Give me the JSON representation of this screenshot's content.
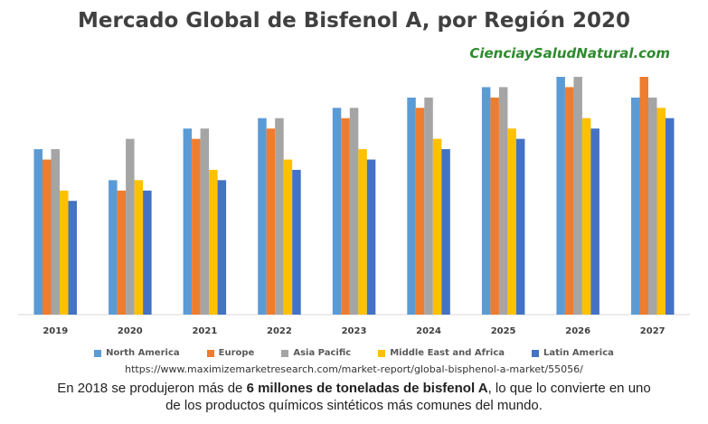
{
  "header": {
    "title": "Mercado Global de Bisfenol A, por Región 2020",
    "site": "CienciaySaludNatural.com"
  },
  "source_url": "https://www.maximizemarketresearch.com/market-report/global-bisphenol-a-market/55056/",
  "caption": {
    "part1": "En 2018 se produjeron más de ",
    "bold": "6 millones de toneladas de  bisfenol A",
    "part2": ", lo que lo convierte en uno de los productos químicos sintéticos más comunes del mundo."
  },
  "chart_data": {
    "type": "bar",
    "title": "Mercado Global de Bisfenol A, por Región 2020",
    "xlabel": "",
    "ylabel": "",
    "grid": false,
    "legend_position": "bottom",
    "ylim": [
      0,
      23
    ],
    "categories": [
      "2019",
      "2020",
      "2021",
      "2022",
      "2023",
      "2024",
      "2025",
      "2026",
      "2027"
    ],
    "series": [
      {
        "name": "North America",
        "color": "#5B9BD5",
        "values": [
          16,
          13,
          18,
          19,
          20,
          21,
          22,
          23,
          21
        ]
      },
      {
        "name": "Europe",
        "color": "#ED7D31",
        "values": [
          15,
          12,
          17,
          18,
          19,
          20,
          21,
          22,
          23
        ]
      },
      {
        "name": "Asia Pacific",
        "color": "#A5A5A5",
        "values": [
          16,
          17,
          18,
          19,
          20,
          21,
          22,
          23,
          21
        ]
      },
      {
        "name": "Middle East and Africa",
        "color": "#FFC000",
        "values": [
          12,
          13,
          14,
          15,
          16,
          17,
          18,
          19,
          20
        ]
      },
      {
        "name": "Latin America",
        "color": "#4472C4",
        "values": [
          11,
          12,
          13,
          14,
          15,
          16,
          17,
          18,
          19
        ]
      }
    ]
  }
}
